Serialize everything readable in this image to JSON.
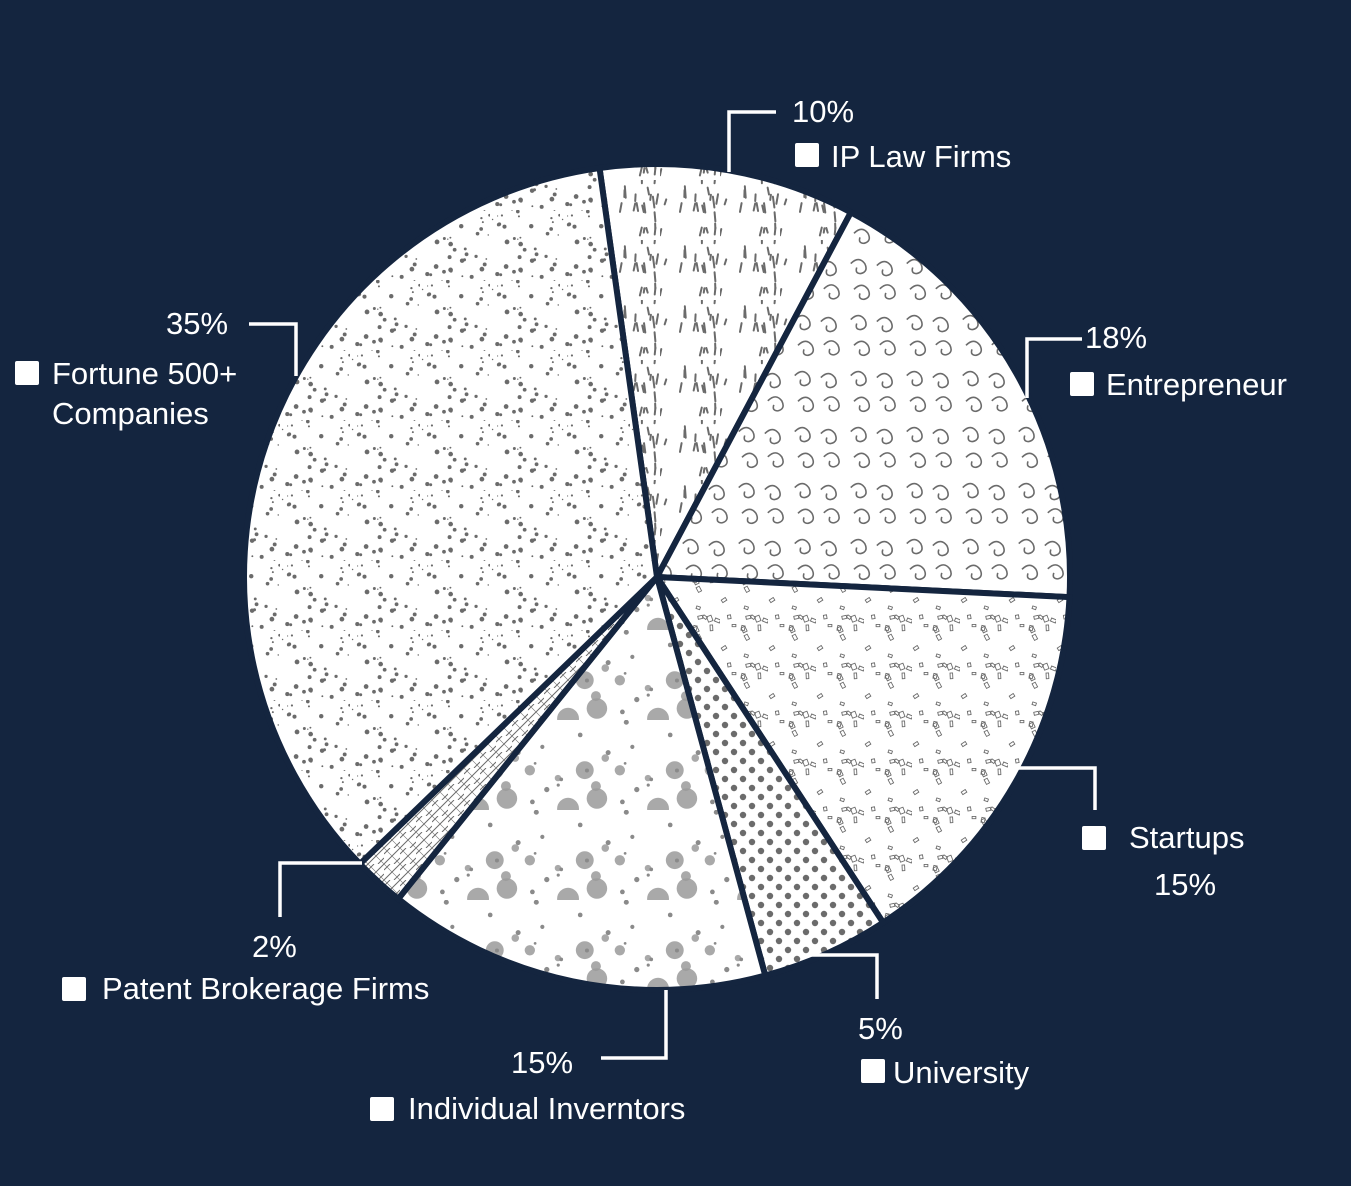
{
  "chart_data": {
    "type": "pie",
    "title": "",
    "start_angle_deg": -8,
    "direction": "clockwise",
    "slices": [
      {
        "label": "IP Law Firms",
        "value": 10,
        "value_label": "10%",
        "pattern": "streaks"
      },
      {
        "label": "Entrepreneur",
        "value": 18,
        "value_label": "18%",
        "pattern": "swirls"
      },
      {
        "label": "Startups",
        "value": 15,
        "value_label": "15%",
        "pattern": "confetti"
      },
      {
        "label": "University",
        "value": 5,
        "value_label": "5%",
        "pattern": "dots"
      },
      {
        "label": "Individual Inverntors",
        "value": 15,
        "value_label": "15%",
        "pattern": "splatter"
      },
      {
        "label": "Patent Brokerage Firms",
        "value": 2,
        "value_label": "2%",
        "pattern": "crosshatch"
      },
      {
        "label": "Fortune 500+ Companies",
        "value": 35,
        "value_label": "35%",
        "pattern": "speckle"
      }
    ],
    "legend": "swatch beside each slice label",
    "colors": {
      "background": "#14253f",
      "slice_fill": "#ffffff",
      "pattern_ink": "#6b6b6b",
      "text": "#ffffff"
    }
  }
}
